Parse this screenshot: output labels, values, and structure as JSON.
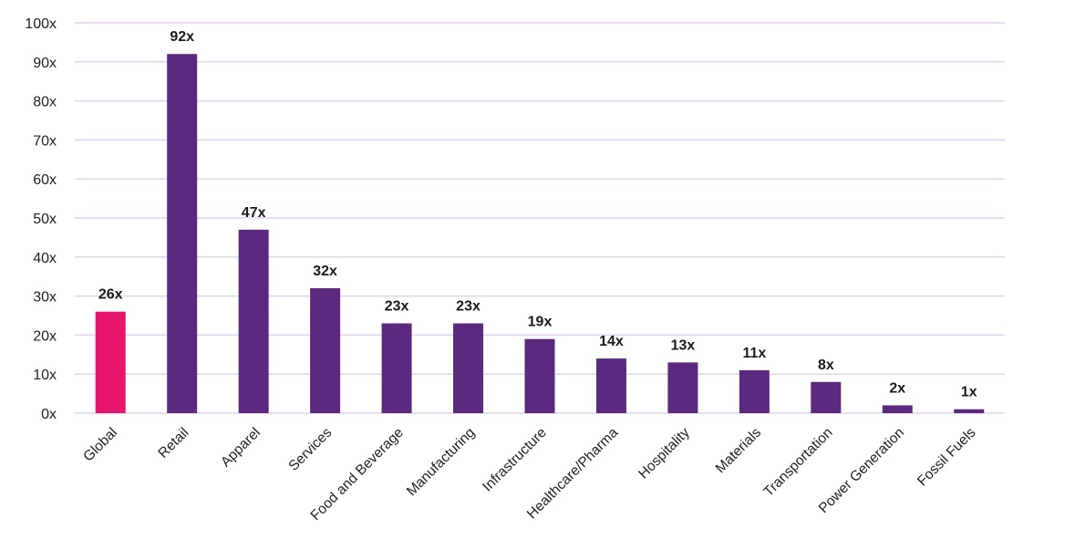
{
  "chart_data": {
    "type": "bar",
    "title": "",
    "xlabel": "",
    "ylabel": "",
    "ylim": [
      0,
      100
    ],
    "ytick_values": [
      0,
      10,
      20,
      30,
      40,
      50,
      60,
      70,
      80,
      90,
      100
    ],
    "ytick_labels": [
      "0x",
      "10x",
      "20x",
      "30x",
      "40x",
      "50x",
      "60x",
      "70x",
      "80x",
      "90x",
      "100x"
    ],
    "categories": [
      "Global",
      "Retail",
      "Apparel",
      "Services",
      "Food and Beverage",
      "Manufacturing",
      "Infrastructure",
      "Healthcare/Pharma",
      "Hospitality",
      "Materials",
      "Transportation",
      "Power Generation",
      "Fossil Fuels"
    ],
    "values": [
      26,
      92,
      47,
      32,
      23,
      23,
      19,
      14,
      13,
      11,
      8,
      2,
      1
    ],
    "data_labels": [
      "26x",
      "92x",
      "47x",
      "32x",
      "23x",
      "23x",
      "19x",
      "14x",
      "13x",
      "11x",
      "8x",
      "2x",
      "1x"
    ],
    "highlight_index": 0,
    "grid": true,
    "legend": "none",
    "colors": {
      "bar": "#5b2a7e",
      "highlight": "#e5166b",
      "grid": "#e3d2ec"
    }
  }
}
